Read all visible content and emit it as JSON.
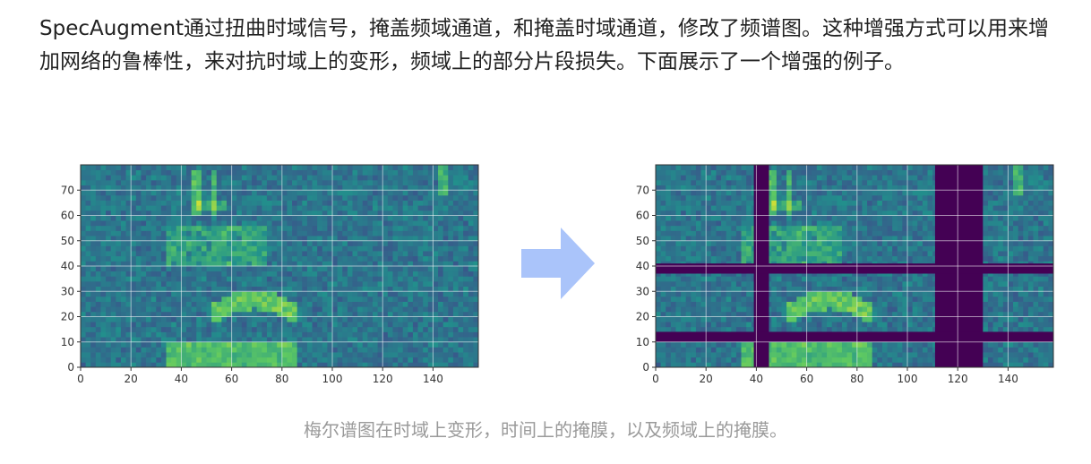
{
  "article": {
    "paragraph": "SpecAugment通过扭曲时域信号，掩盖频域通道，和掩盖时域通道，修改了频谱图。这种增强方式可以用来增加网络的鲁棒性，来对抗时域上的变形，频域上的部分片段损失。下面展示了一个增强的例子。",
    "caption": "梅尔谱图在时域上变形，时间上的掩膜，以及频域上的掩膜。"
  },
  "figure": {
    "arrow_color": "#aac4fa",
    "mask_color": "#440154",
    "x_ticks": [
      "0",
      "20",
      "40",
      "60",
      "80",
      "100",
      "120",
      "140"
    ],
    "y_ticks": [
      "0",
      "10",
      "20",
      "30",
      "40",
      "50",
      "60",
      "70"
    ],
    "left_panel": {
      "content": "mel spectrogram"
    },
    "right_panel": {
      "content": "augmented mel spectrogram",
      "time_masks": [
        [
          39,
          45
        ],
        [
          111,
          130
        ]
      ],
      "freq_masks": [
        [
          10,
          14
        ],
        [
          37,
          41
        ]
      ]
    }
  }
}
